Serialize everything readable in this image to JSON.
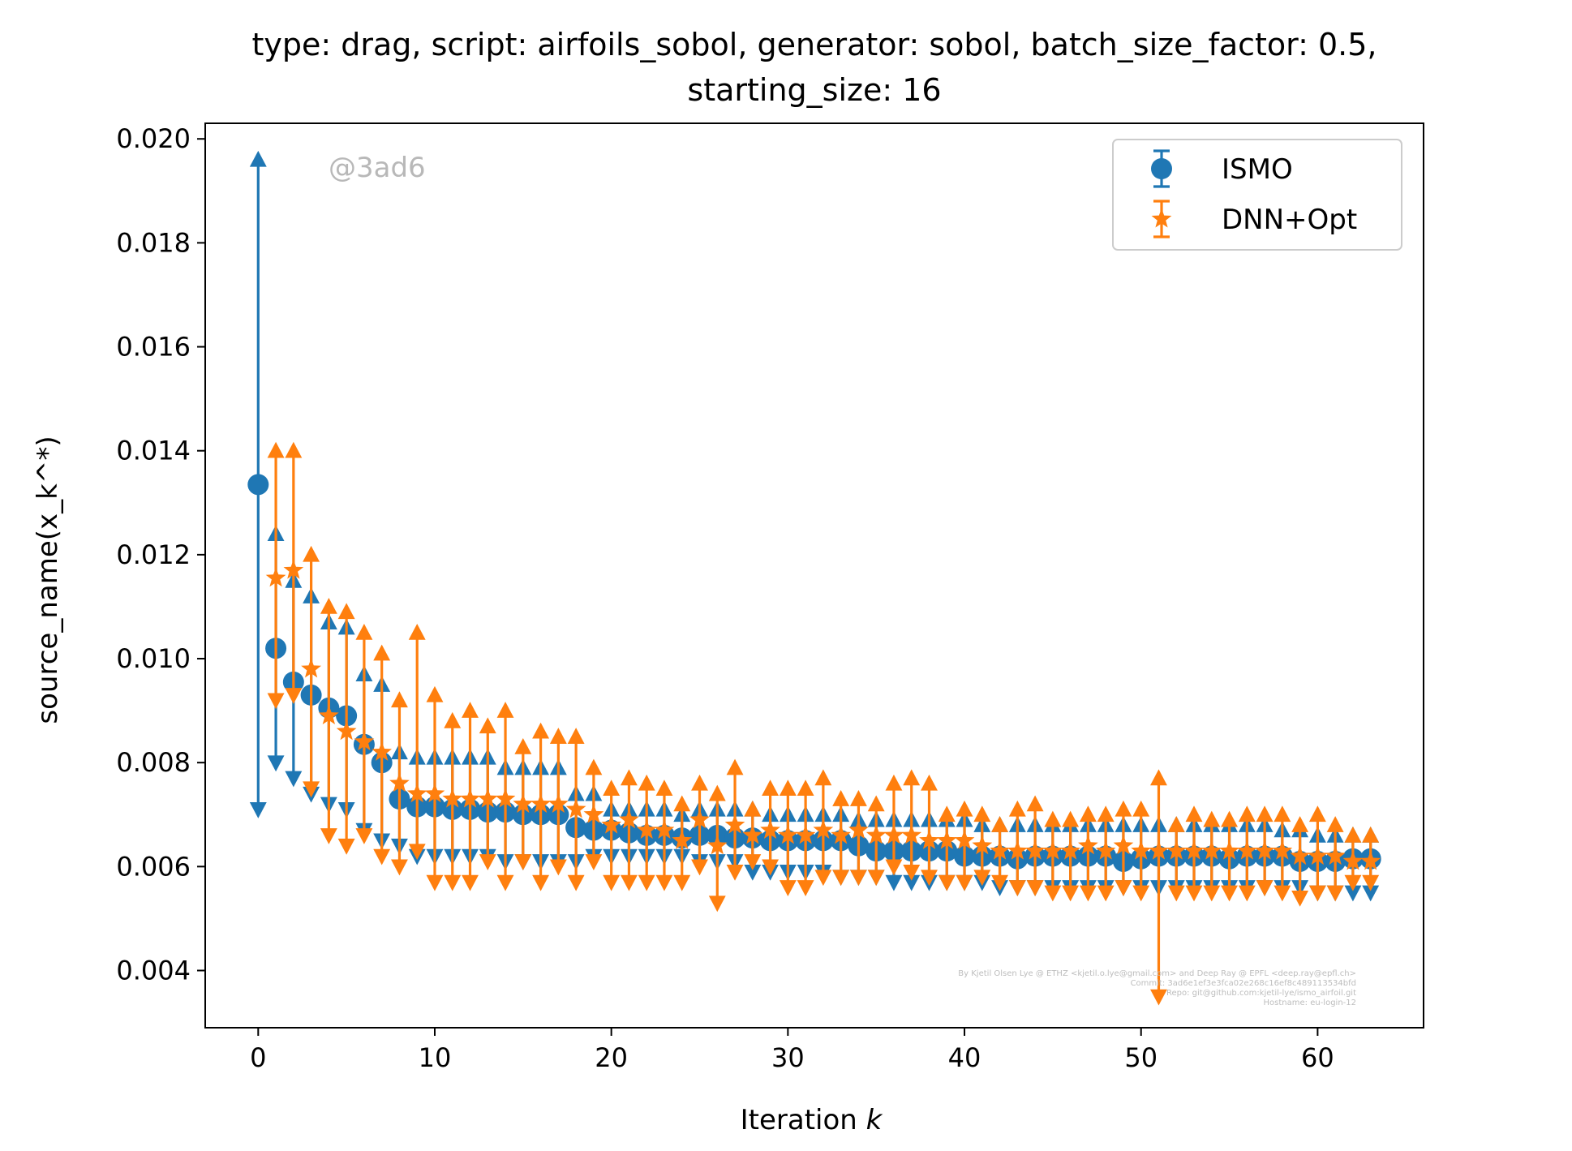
{
  "chart_data": {
    "type": "scatter",
    "title_line1": "type: drag, script: airfoils_sobol, generator: sobol, batch_size_factor: 0.5,",
    "title_line2": "starting_size: 16",
    "xlabel": "Iteration k",
    "ylabel": "source_name(x_k^*)",
    "xlim": [
      -3,
      66
    ],
    "ylim": [
      0.0029,
      0.0203
    ],
    "xticks": [
      0,
      10,
      20,
      30,
      40,
      50,
      60
    ],
    "xtick_labels": [
      "0",
      "10",
      "20",
      "30",
      "40",
      "50",
      "60"
    ],
    "yticks": [
      0.004,
      0.006,
      0.008,
      0.01,
      0.012,
      0.014,
      0.016,
      0.018,
      0.02
    ],
    "ytick_labels": [
      "0.004",
      "0.006",
      "0.008",
      "0.010",
      "0.012",
      "0.014",
      "0.016",
      "0.018",
      "0.020"
    ],
    "grid": false,
    "legend_position": "top-right",
    "watermark": "@3ad6",
    "footer_credits": [
      "By Kjetil Olsen Lye @ ETHZ <kjetil.o.lye@gmail.com> and Deep Ray @ EPFL <deep.ray@epfl.ch>",
      "Commit: 3ad6e1ef3e3fca02e268c16ef8c489113534bfd",
      "Repo: git@github.com:kjetil-lye/ismo_airfoil.git",
      "Hostname: eu-login-12"
    ],
    "x": [
      0,
      1,
      2,
      3,
      4,
      5,
      6,
      7,
      8,
      9,
      10,
      11,
      12,
      13,
      14,
      15,
      16,
      17,
      18,
      19,
      20,
      21,
      22,
      23,
      24,
      25,
      26,
      27,
      28,
      29,
      30,
      31,
      32,
      33,
      34,
      35,
      36,
      37,
      38,
      39,
      40,
      41,
      42,
      43,
      44,
      45,
      46,
      47,
      48,
      49,
      50,
      51,
      52,
      53,
      54,
      55,
      56,
      57,
      58,
      59,
      60,
      61,
      62,
      63
    ],
    "series": [
      {
        "name": "ISMO",
        "color": "#1f77b4",
        "marker": "circle",
        "mean": [
          0.01335,
          0.0102,
          0.00955,
          0.0093,
          0.00905,
          0.0089,
          0.00835,
          0.008,
          0.0073,
          0.00715,
          0.00715,
          0.0071,
          0.0071,
          0.00705,
          0.00705,
          0.007,
          0.007,
          0.007,
          0.00675,
          0.0067,
          0.0067,
          0.00665,
          0.0066,
          0.0066,
          0.00655,
          0.0066,
          0.0066,
          0.00655,
          0.00655,
          0.0065,
          0.0065,
          0.0065,
          0.0065,
          0.0065,
          0.0064,
          0.0063,
          0.0063,
          0.0063,
          0.0063,
          0.0063,
          0.0062,
          0.0062,
          0.0062,
          0.00615,
          0.0062,
          0.0062,
          0.0062,
          0.0062,
          0.0062,
          0.0061,
          0.00615,
          0.0062,
          0.0062,
          0.0062,
          0.0062,
          0.00615,
          0.0062,
          0.0062,
          0.0062,
          0.0061,
          0.0061,
          0.0061,
          0.00615,
          0.00615
        ],
        "upper": [
          0.0196,
          0.0124,
          0.0115,
          0.0112,
          0.0107,
          0.0106,
          0.0097,
          0.0095,
          0.0082,
          0.0081,
          0.0081,
          0.0081,
          0.0081,
          0.0081,
          0.0079,
          0.0079,
          0.0079,
          0.0079,
          0.0074,
          0.0074,
          0.0071,
          0.0071,
          0.0071,
          0.0071,
          0.007,
          0.0071,
          0.0071,
          0.0071,
          0.0071,
          0.007,
          0.007,
          0.007,
          0.007,
          0.007,
          0.0069,
          0.0069,
          0.0069,
          0.0069,
          0.0069,
          0.0069,
          0.0069,
          0.0068,
          0.0068,
          0.0068,
          0.0068,
          0.0068,
          0.0068,
          0.0068,
          0.0068,
          0.0068,
          0.0068,
          0.0068,
          0.0068,
          0.0068,
          0.0068,
          0.0068,
          0.0068,
          0.0068,
          0.0067,
          0.0067,
          0.0066,
          0.0066,
          0.0066,
          0.0066
        ],
        "lower": [
          0.0071,
          0.008,
          0.0077,
          0.0074,
          0.0072,
          0.0071,
          0.0067,
          0.0065,
          0.0064,
          0.0062,
          0.0062,
          0.0062,
          0.0062,
          0.0062,
          0.0061,
          0.0061,
          0.0061,
          0.0061,
          0.0061,
          0.0062,
          0.0062,
          0.0062,
          0.0062,
          0.0062,
          0.0062,
          0.0061,
          0.0061,
          0.0061,
          0.0059,
          0.0059,
          0.0059,
          0.0059,
          0.0059,
          0.0058,
          0.0058,
          0.0058,
          0.0057,
          0.0057,
          0.0057,
          0.0057,
          0.0057,
          0.0057,
          0.0056,
          0.0056,
          0.0056,
          0.0056,
          0.0056,
          0.0056,
          0.0056,
          0.0056,
          0.0056,
          0.0056,
          0.0056,
          0.0056,
          0.0056,
          0.0056,
          0.0056,
          0.0056,
          0.0056,
          0.0056,
          0.0055,
          0.0055,
          0.0055,
          0.0055
        ]
      },
      {
        "name": "DNN+Opt",
        "color": "#ff7f0e",
        "marker": "star",
        "mean": [
          null,
          0.01155,
          0.0117,
          0.0098,
          0.0089,
          0.0086,
          0.0084,
          0.0082,
          0.0076,
          0.0074,
          0.0074,
          0.0073,
          0.0073,
          0.0073,
          0.0073,
          0.0072,
          0.0072,
          0.0072,
          0.0071,
          0.007,
          0.0068,
          0.0069,
          0.0067,
          0.0067,
          0.0065,
          0.0069,
          0.0064,
          0.0068,
          0.0066,
          0.0067,
          0.0066,
          0.0066,
          0.0067,
          0.0066,
          0.0067,
          0.0066,
          0.0066,
          0.0066,
          0.0065,
          0.0065,
          0.0065,
          0.0064,
          0.0063,
          0.0063,
          0.0063,
          0.0063,
          0.0063,
          0.0064,
          0.0063,
          0.0064,
          0.0063,
          0.0063,
          0.0063,
          0.0063,
          0.0063,
          0.0063,
          0.0063,
          0.0063,
          0.0063,
          0.0062,
          0.0062,
          0.0062,
          0.0061,
          0.0061
        ],
        "upper": [
          null,
          0.014,
          0.014,
          0.012,
          0.011,
          0.0109,
          0.0105,
          0.0101,
          0.0092,
          0.0105,
          0.0093,
          0.0088,
          0.009,
          0.0087,
          0.009,
          0.0083,
          0.0086,
          0.0085,
          0.0085,
          0.0079,
          0.0075,
          0.0077,
          0.0076,
          0.0075,
          0.0072,
          0.0076,
          0.0074,
          0.0079,
          0.0071,
          0.0075,
          0.0075,
          0.0075,
          0.0077,
          0.0073,
          0.0073,
          0.0072,
          0.0076,
          0.0077,
          0.0076,
          0.007,
          0.0071,
          0.007,
          0.0068,
          0.0071,
          0.0072,
          0.0069,
          0.0069,
          0.007,
          0.007,
          0.0071,
          0.0071,
          0.0077,
          0.0068,
          0.007,
          0.0069,
          0.0069,
          0.007,
          0.007,
          0.007,
          0.0068,
          0.007,
          0.0068,
          0.0066,
          0.0066
        ],
        "lower": [
          null,
          0.0092,
          0.0093,
          0.0075,
          0.0066,
          0.0064,
          0.0066,
          0.0062,
          0.006,
          0.0063,
          0.0057,
          0.0057,
          0.0057,
          0.0061,
          0.0057,
          0.0061,
          0.0057,
          0.006,
          0.0057,
          0.0061,
          0.0057,
          0.0057,
          0.0057,
          0.0057,
          0.0057,
          0.006,
          0.0053,
          0.0059,
          0.0061,
          0.006,
          0.0056,
          0.0056,
          0.0058,
          0.0058,
          0.0058,
          0.0058,
          0.006,
          0.0059,
          0.0058,
          0.0057,
          0.0057,
          0.0058,
          0.0057,
          0.0056,
          0.0056,
          0.0055,
          0.0055,
          0.0055,
          0.0055,
          0.0056,
          0.0055,
          0.0035,
          0.0055,
          0.0055,
          0.0055,
          0.0055,
          0.0055,
          0.0056,
          0.0055,
          0.0054,
          0.0055,
          0.0055,
          0.0057,
          0.0057
        ]
      }
    ]
  }
}
